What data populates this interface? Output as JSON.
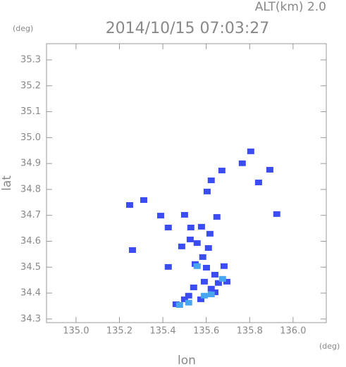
{
  "chart_data": {
    "type": "scatter",
    "title": "2014/10/15 07:03:27",
    "subtitle": "ALT(km) 2.0",
    "xlabel": "lon",
    "xunit": "(deg)",
    "ylabel": "lat",
    "yunit": "(deg)",
    "xlim": [
      134.864,
      136.153
    ],
    "ylim": [
      34.286,
      35.3625
    ],
    "xticks": [
      {
        "value": 135,
        "label": "135.0"
      },
      135.2,
      135.4,
      135.6,
      135.8,
      {
        "value": 136,
        "label": "136.0"
      }
    ],
    "yticks": [
      34.3,
      34.4,
      34.5,
      34.6,
      34.7,
      34.8,
      34.9,
      {
        "value": 35,
        "label": "35.0"
      },
      35.1,
      35.2,
      35.3
    ],
    "series": [
      {
        "color": "#3b4cf2",
        "x": [
          135.805,
          135.766,
          135.893,
          135.841,
          135.672,
          135.623,
          135.604,
          135.247,
          135.312,
          135.39,
          135.425,
          135.5,
          135.529,
          135.578,
          135.617,
          135.649,
          135.558,
          135.61,
          135.26,
          135.425,
          135.549,
          135.601,
          135.64,
          135.682,
          135.591,
          135.656,
          135.623,
          135.542,
          135.695,
          135.519,
          135.575,
          135.64,
          135.461,
          135.5,
          135.925,
          135.487,
          135.526,
          135.584
        ],
        "values": [
          34.947,
          34.901,
          34.876,
          34.827,
          34.873,
          34.835,
          34.792,
          34.74,
          34.759,
          34.699,
          34.653,
          34.702,
          34.653,
          34.656,
          34.629,
          34.694,
          34.593,
          34.574,
          34.566,
          34.501,
          34.512,
          34.498,
          34.471,
          34.504,
          34.444,
          34.439,
          34.417,
          34.422,
          34.444,
          34.39,
          34.376,
          34.403,
          34.357,
          34.376,
          34.705,
          34.58,
          34.607,
          34.539
        ]
      },
      {
        "color": "#48a6f0",
        "x": [
          135.558,
          135.519,
          135.591,
          135.623,
          135.477,
          135.675
        ],
        "values": [
          34.504,
          34.363,
          34.39,
          34.395,
          34.354,
          34.455
        ]
      }
    ]
  }
}
